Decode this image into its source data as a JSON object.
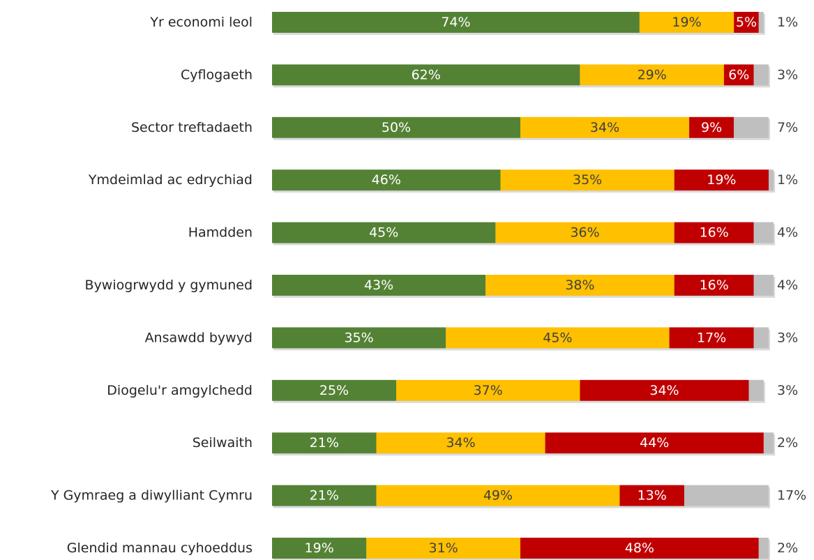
{
  "chart_data": {
    "type": "bar",
    "orientation": "horizontal",
    "stacked": true,
    "title": "",
    "xlabel": "",
    "ylabel": "",
    "xlim": [
      0,
      100
    ],
    "grid": false,
    "legend": "none",
    "categories": [
      "Yr economi leol",
      "Cyflogaeth",
      "Sector treftadaeth",
      "Ymdeimlad ac edrychiad",
      "Hamdden",
      "Bywiogrwydd y gymuned",
      "Ansawdd bywyd",
      "Diogelu'r amgylchedd",
      "Seilwaith",
      "Y Gymraeg a diwylliant Cymru",
      "Glendid mannau cyhoeddus"
    ],
    "series": [
      {
        "color": "#548235",
        "label_color": "#ffffff",
        "values": [
          74,
          62,
          50,
          46,
          45,
          43,
          35,
          25,
          21,
          21,
          19
        ]
      },
      {
        "color": "#ffc000",
        "label_color": "#404040",
        "values": [
          19,
          29,
          34,
          35,
          36,
          38,
          45,
          37,
          34,
          49,
          31
        ]
      },
      {
        "color": "#c00000",
        "label_color": "#ffffff",
        "values": [
          5,
          6,
          9,
          19,
          16,
          16,
          17,
          34,
          44,
          13,
          48
        ]
      },
      {
        "color": "#bfbfbf",
        "label_color": "#404040",
        "values": [
          1,
          3,
          7,
          1,
          4,
          4,
          3,
          3,
          2,
          17,
          2
        ]
      }
    ],
    "value_suffix": "%"
  }
}
